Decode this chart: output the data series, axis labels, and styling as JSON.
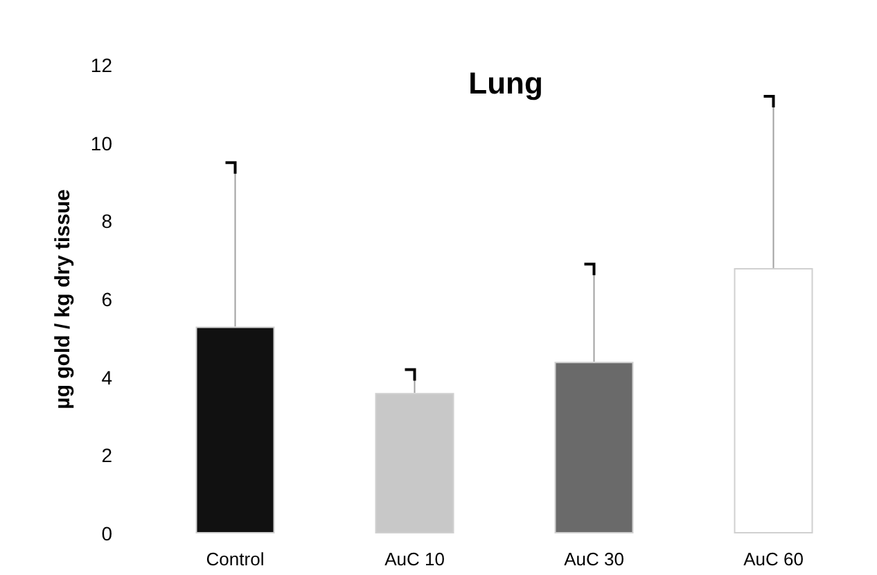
{
  "chart_data": {
    "type": "bar",
    "title": "Lung",
    "ylabel": "µg gold / kg dry tissue",
    "categories": [
      "Control",
      "AuC 10",
      "AuC 30",
      "AuC 60"
    ],
    "values": [
      5.3,
      3.6,
      4.4,
      6.8
    ],
    "colors": [
      "#111111",
      "#c8c8c8",
      "#6a6a6a",
      "#ffffff"
    ],
    "errors": [
      [
        5.3,
        9.5
      ],
      [
        3.6,
        4.2
      ],
      [
        4.4,
        6.9
      ],
      [
        6.8,
        11.2
      ]
    ],
    "ylim": [
      0,
      12
    ],
    "yticks": [
      0,
      2,
      4,
      6,
      8,
      10,
      12
    ],
    "grid": false
  }
}
